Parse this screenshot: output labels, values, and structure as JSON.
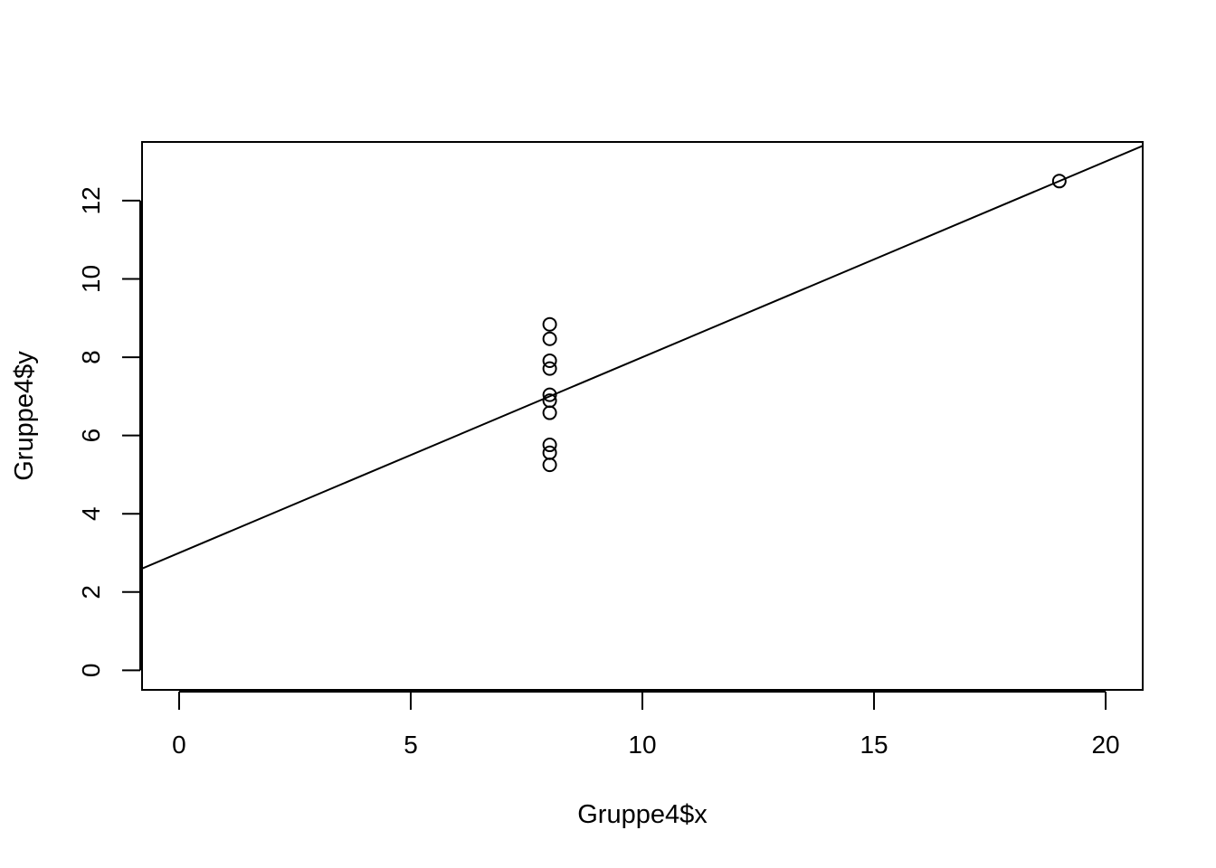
{
  "chart_data": {
    "type": "scatter",
    "title": "",
    "xlabel": "Gruppe4$x",
    "ylabel": "Gruppe4$y",
    "xlim": [
      -0.8,
      20.8
    ],
    "ylim": [
      -0.5,
      13.5
    ],
    "x_ticks": [
      0,
      5,
      10,
      15,
      20
    ],
    "x_tick_labels": [
      "0",
      "5",
      "10",
      "15",
      "20"
    ],
    "y_ticks": [
      0,
      2,
      4,
      6,
      8,
      10,
      12
    ],
    "y_tick_labels": [
      "0",
      "2",
      "4",
      "6",
      "8",
      "10",
      "12"
    ],
    "grid": false,
    "legend": "none",
    "series": [
      {
        "type": "points",
        "marker": "open-circle",
        "color": "#000000",
        "points": [
          {
            "x": 8,
            "y": 8.84
          },
          {
            "x": 8,
            "y": 8.47
          },
          {
            "x": 8,
            "y": 7.91
          },
          {
            "x": 8,
            "y": 7.71
          },
          {
            "x": 8,
            "y": 7.04
          },
          {
            "x": 8,
            "y": 6.89
          },
          {
            "x": 8,
            "y": 6.58
          },
          {
            "x": 8,
            "y": 5.76
          },
          {
            "x": 8,
            "y": 5.56
          },
          {
            "x": 8,
            "y": 5.25
          },
          {
            "x": 19,
            "y": 12.5
          }
        ]
      },
      {
        "type": "abline",
        "color": "#000000",
        "intercept": 3.0,
        "slope": 0.5
      }
    ]
  }
}
